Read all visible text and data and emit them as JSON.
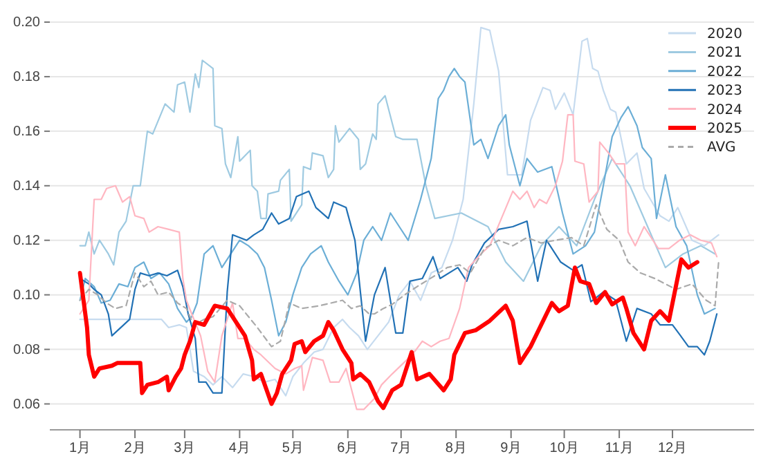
{
  "chart_data": {
    "type": "line",
    "xlim": [
      "2000-12-15",
      "2002-01-16"
    ],
    "ylim": [
      0.0505,
      0.2
    ],
    "xticks": [
      {
        "value": "--01-01",
        "label": "1月"
      },
      {
        "value": "--02-01",
        "label": "2月"
      },
      {
        "value": "--03-01",
        "label": "3月"
      },
      {
        "value": "--04-01",
        "label": "4月"
      },
      {
        "value": "--05-01",
        "label": "5月"
      },
      {
        "value": "--06-01",
        "label": "6月"
      },
      {
        "value": "--07-01",
        "label": "7月"
      },
      {
        "value": "--08-01",
        "label": "8月"
      },
      {
        "value": "--09-01",
        "label": "9月"
      },
      {
        "value": "--10-01",
        "label": "10月"
      },
      {
        "value": "--11-01",
        "label": "11月"
      },
      {
        "value": "--12-01",
        "label": "12月"
      }
    ],
    "yticks": [
      {
        "value": 0.06,
        "label": "0.06"
      },
      {
        "value": 0.08,
        "label": "0.08"
      },
      {
        "value": 0.1,
        "label": "0.10"
      },
      {
        "value": 0.12,
        "label": "0.12"
      },
      {
        "value": 0.14,
        "label": "0.14"
      },
      {
        "value": 0.16,
        "label": "0.16"
      },
      {
        "value": 0.18,
        "label": "0.18"
      },
      {
        "value": 0.2,
        "label": "0.20"
      }
    ],
    "grid": "y",
    "legend": "top right",
    "marker": "none",
    "series": [
      {
        "name": "2020",
        "color": "#c6dbef",
        "line_style": "solid",
        "x": [
          "--01-01",
          "--01-11",
          "--01-21",
          "--01-31",
          "--02-10",
          "--02-16",
          "--02-20",
          "--02-26",
          "--03-02",
          "--03-06",
          "--03-12",
          "--03-17",
          "--03-22",
          "--03-28",
          "--04-03",
          "--04-09",
          "--04-15",
          "--04-21",
          "--04-27",
          "--05-01",
          "--05-07",
          "--05-13",
          "--05-18",
          "--05-24",
          "--05-29",
          "--06-02",
          "--06-07",
          "--06-12",
          "--06-18",
          "--06-24",
          "--06-30",
          "--07-06",
          "--07-12",
          "--07-18",
          "--07-24",
          "--07-30",
          "--08-05",
          "--08-11",
          "--08-15",
          "--08-20",
          "--08-25",
          "--08-30",
          "--09-07",
          "--09-12",
          "--09-19",
          "--09-23",
          "--09-26",
          "--10-01",
          "--10-06",
          "--10-11",
          "--10-14",
          "--10-17",
          "--10-20",
          "--10-23",
          "--10-27",
          "--10-30",
          "--11-05",
          "--11-11",
          "--11-15",
          "--11-24",
          "--11-29",
          "--12-04",
          "--12-12",
          "--12-19",
          "--12-27"
        ],
        "values": [
          0.091,
          0.091,
          0.091,
          0.091,
          0.091,
          0.091,
          0.088,
          0.089,
          0.088,
          0.072,
          0.07,
          0.067,
          0.07,
          0.066,
          0.071,
          0.07,
          0.068,
          0.069,
          0.063,
          0.07,
          0.075,
          0.079,
          0.08,
          0.088,
          0.091,
          0.088,
          0.085,
          0.08,
          0.085,
          0.09,
          0.1,
          0.105,
          0.098,
          0.108,
          0.11,
          0.12,
          0.135,
          0.17,
          0.198,
          0.197,
          0.182,
          0.144,
          0.144,
          0.164,
          0.176,
          0.175,
          0.168,
          0.174,
          0.166,
          0.193,
          0.194,
          0.183,
          0.182,
          0.175,
          0.168,
          0.167,
          0.148,
          0.152,
          0.139,
          0.129,
          0.127,
          0.132,
          0.12,
          0.118,
          0.122
        ]
      },
      {
        "name": "2021",
        "color": "#9ecae1",
        "line_style": "solid",
        "x": [
          "--01-01",
          "--01-04",
          "--01-06",
          "--01-09",
          "--01-12",
          "--01-17",
          "--01-20",
          "--01-23",
          "--01-27",
          "--01-31",
          "--02-04",
          "--02-08",
          "--02-11",
          "--02-18",
          "--02-23",
          "--02-25",
          "--03-01",
          "--03-04",
          "--03-07",
          "--03-09",
          "--03-11",
          "--03-17",
          "--03-18",
          "--03-22",
          "--03-24",
          "--03-27",
          "--03-31",
          "--04-01",
          "--04-07",
          "--04-08",
          "--04-11",
          "--04-13",
          "--04-16",
          "--04-17",
          "--04-23",
          "--04-24",
          "--04-29",
          "--04-30",
          "--05-06",
          "--05-07",
          "--05-11",
          "--05-12",
          "--05-18",
          "--05-21",
          "--05-24",
          "--05-25",
          "--05-27",
          "--06-02",
          "--06-07",
          "--06-08",
          "--06-11",
          "--06-15",
          "--06-17",
          "--06-18",
          "--06-22",
          "--06-26",
          "--06-28",
          "--07-02",
          "--07-10",
          "--07-15",
          "--07-20",
          "--08-04",
          "--08-19",
          "--08-29",
          "--09-08",
          "--09-18",
          "--09-28",
          "--10-08",
          "--10-18",
          "--10-28",
          "--11-07",
          "--11-17",
          "--11-27",
          "--12-07",
          "--12-17",
          "--12-25"
        ],
        "values": [
          0.118,
          0.118,
          0.123,
          0.115,
          0.12,
          0.115,
          0.111,
          0.123,
          0.127,
          0.14,
          0.14,
          0.16,
          0.159,
          0.17,
          0.167,
          0.177,
          0.178,
          0.167,
          0.181,
          0.176,
          0.186,
          0.183,
          0.162,
          0.161,
          0.148,
          0.143,
          0.158,
          0.149,
          0.153,
          0.14,
          0.138,
          0.128,
          0.128,
          0.137,
          0.138,
          0.142,
          0.146,
          0.127,
          0.133,
          0.147,
          0.146,
          0.152,
          0.151,
          0.143,
          0.146,
          0.162,
          0.156,
          0.161,
          0.157,
          0.146,
          0.148,
          0.159,
          0.157,
          0.17,
          0.173,
          0.163,
          0.158,
          0.157,
          0.157,
          0.14,
          0.128,
          0.13,
          0.125,
          0.112,
          0.105,
          0.118,
          0.125,
          0.118,
          0.135,
          0.15,
          0.14,
          0.125,
          0.11,
          0.115,
          0.118,
          0.115
        ]
      },
      {
        "name": "2022",
        "color": "#6baed6",
        "line_style": "solid",
        "x": [
          "--01-01",
          "--01-04",
          "--01-09",
          "--01-13",
          "--01-18",
          "--01-23",
          "--01-28",
          "--02-01",
          "--02-06",
          "--02-10",
          "--02-15",
          "--02-20",
          "--02-25",
          "--03-02",
          "--03-05",
          "--03-08",
          "--03-12",
          "--03-17",
          "--03-22",
          "--03-27",
          "--04-01",
          "--04-06",
          "--04-11",
          "--04-15",
          "--04-19",
          "--04-23",
          "--04-27",
          "--05-01",
          "--05-06",
          "--05-11",
          "--05-17",
          "--05-21",
          "--05-27",
          "--06-01",
          "--06-06",
          "--06-10",
          "--06-15",
          "--06-20",
          "--06-25",
          "--06-30",
          "--07-05",
          "--07-12",
          "--07-18",
          "--07-22",
          "--07-25",
          "--07-28",
          "--07-31",
          "--08-03",
          "--08-06",
          "--08-11",
          "--08-15",
          "--08-19",
          "--08-25",
          "--08-29",
          "--08-31",
          "--09-06",
          "--09-10",
          "--09-16",
          "--09-24",
          "--09-30",
          "--10-06",
          "--10-13",
          "--10-18",
          "--10-23",
          "--10-28",
          "--11-02",
          "--11-06",
          "--11-11",
          "--11-14",
          "--11-19",
          "--11-22",
          "--11-27",
          "--12-03",
          "--12-09",
          "--12-15",
          "--12-19",
          "--12-25"
        ],
        "values": [
          0.098,
          0.106,
          0.103,
          0.097,
          0.098,
          0.104,
          0.103,
          0.11,
          0.112,
          0.106,
          0.108,
          0.104,
          0.095,
          0.09,
          0.092,
          0.097,
          0.115,
          0.118,
          0.11,
          0.115,
          0.12,
          0.118,
          0.115,
          0.11,
          0.098,
          0.085,
          0.09,
          0.1,
          0.11,
          0.115,
          0.118,
          0.112,
          0.105,
          0.1,
          0.108,
          0.12,
          0.125,
          0.12,
          0.13,
          0.125,
          0.12,
          0.135,
          0.15,
          0.172,
          0.175,
          0.18,
          0.183,
          0.18,
          0.178,
          0.155,
          0.157,
          0.15,
          0.162,
          0.166,
          0.155,
          0.14,
          0.15,
          0.145,
          0.147,
          0.13,
          0.115,
          0.118,
          0.123,
          0.14,
          0.158,
          0.165,
          0.169,
          0.162,
          0.154,
          0.15,
          0.128,
          0.144,
          0.125,
          0.118,
          0.1,
          0.093,
          0.095
        ]
      },
      {
        "name": "2023",
        "color": "#2171b5",
        "line_style": "solid",
        "x": [
          "--01-01",
          "--01-06",
          "--01-09",
          "--01-13",
          "--01-17",
          "--01-19",
          "--01-29",
          "--02-01",
          "--02-04",
          "--02-09",
          "--02-14",
          "--02-19",
          "--02-25",
          "--02-28",
          "--03-03",
          "--03-07",
          "--03-09",
          "--03-13",
          "--03-17",
          "--03-22",
          "--03-25",
          "--03-28",
          "--04-05",
          "--04-09",
          "--04-14",
          "--04-19",
          "--04-23",
          "--04-29",
          "--05-03",
          "--05-10",
          "--05-14",
          "--05-21",
          "--05-24",
          "--05-31",
          "--06-05",
          "--06-11",
          "--06-16",
          "--06-22",
          "--06-28",
          "--07-02",
          "--07-06",
          "--07-13",
          "--07-19",
          "--07-23",
          "--08-02",
          "--08-07",
          "--08-10",
          "--08-17",
          "--08-25",
          "--09-02",
          "--09-10",
          "--09-16",
          "--09-21",
          "--09-29",
          "--10-06",
          "--10-11",
          "--10-16",
          "--10-23",
          "--10-30",
          "--11-05",
          "--11-11",
          "--11-19",
          "--11-24",
          "--12-01",
          "--12-05",
          "--12-10",
          "--12-15",
          "--12-19",
          "--12-22",
          "--12-26"
        ],
        "values": [
          0.106,
          0.104,
          0.102,
          0.1,
          0.093,
          0.085,
          0.091,
          0.102,
          0.108,
          0.107,
          0.108,
          0.107,
          0.109,
          0.103,
          0.093,
          0.084,
          0.068,
          0.068,
          0.064,
          0.064,
          0.101,
          0.122,
          0.12,
          0.122,
          0.124,
          0.13,
          0.126,
          0.128,
          0.136,
          0.138,
          0.132,
          0.128,
          0.134,
          0.132,
          0.12,
          0.083,
          0.1,
          0.11,
          0.086,
          0.086,
          0.105,
          0.106,
          0.114,
          0.106,
          0.11,
          0.105,
          0.111,
          0.119,
          0.124,
          0.125,
          0.127,
          0.105,
          0.12,
          0.112,
          0.109,
          0.111,
          0.0975,
          0.101,
          0.098,
          0.083,
          0.095,
          0.093,
          0.089,
          0.089,
          0.0855,
          0.081,
          0.081,
          0.078,
          0.083,
          0.093
        ]
      },
      {
        "name": "2024",
        "color": "#ffb6c1",
        "line_style": "solid",
        "x": [
          "--01-01",
          "--01-06",
          "--01-09",
          "--01-13",
          "--01-16",
          "--01-21",
          "--01-25",
          "--01-29",
          "--02-01",
          "--02-06",
          "--02-09",
          "--02-14",
          "--02-20",
          "--02-26",
          "--02-28",
          "--03-02",
          "--03-05",
          "--03-10",
          "--03-14",
          "--03-18",
          "--03-22",
          "--03-28",
          "--03-31",
          "--04-04",
          "--04-09",
          "--04-13",
          "--04-21",
          "--04-27",
          "--05-02",
          "--05-06",
          "--05-07",
          "--05-12",
          "--05-18",
          "--05-22",
          "--05-27",
          "--05-31",
          "--06-06",
          "--06-10",
          "--06-16",
          "--06-20",
          "--06-26",
          "--07-04",
          "--07-09",
          "--07-13",
          "--07-18",
          "--07-23",
          "--07-28",
          "--08-03",
          "--08-08",
          "--08-15",
          "--08-20",
          "--08-24",
          "--09-02",
          "--09-06",
          "--09-10",
          "--09-14",
          "--09-17",
          "--09-21",
          "--09-26",
          "--09-30",
          "--10-03",
          "--10-06",
          "--10-07",
          "--10-12",
          "--10-15",
          "--10-20",
          "--10-21",
          "--10-26",
          "--10-30",
          "--11-04",
          "--11-06",
          "--11-10",
          "--11-15",
          "--11-23",
          "--11-29",
          "--12-05",
          "--12-11",
          "--12-17",
          "--12-23",
          "--12-26"
        ],
        "values": [
          0.093,
          0.098,
          0.135,
          0.135,
          0.139,
          0.14,
          0.134,
          0.136,
          0.129,
          0.128,
          0.123,
          0.125,
          0.124,
          0.123,
          0.106,
          0.098,
          0.093,
          0.085,
          0.072,
          0.068,
          0.085,
          0.097,
          0.084,
          0.084,
          0.08,
          0.078,
          0.073,
          0.071,
          0.073,
          0.074,
          0.065,
          0.077,
          0.076,
          0.068,
          0.068,
          0.073,
          0.058,
          0.058,
          0.062,
          0.067,
          0.071,
          0.076,
          0.0795,
          0.083,
          0.081,
          0.083,
          0.084,
          0.095,
          0.11,
          0.115,
          0.118,
          0.124,
          0.138,
          0.135,
          0.138,
          0.132,
          0.135,
          0.1335,
          0.14,
          0.149,
          0.166,
          0.166,
          0.149,
          0.148,
          0.134,
          0.138,
          0.156,
          0.152,
          0.148,
          0.148,
          0.123,
          0.118,
          0.125,
          0.117,
          0.117,
          0.12,
          0.122,
          0.12,
          0.119,
          0.114
        ]
      },
      {
        "name": "2025",
        "color": "#ff0000",
        "line_style": "solid",
        "x": [
          "--01-01",
          "--01-05",
          "--01-06",
          "--01-09",
          "--01-12",
          "--01-19",
          "--01-22",
          "--02-04",
          "--02-05",
          "--02-08",
          "--02-14",
          "--02-19",
          "--02-20",
          "--02-24",
          "--02-27",
          "--03-01",
          "--03-04",
          "--03-07",
          "--03-12",
          "--03-18",
          "--03-25",
          "--03-30",
          "--04-04",
          "--04-08",
          "--04-09",
          "--04-13",
          "--04-19",
          "--04-22",
          "--04-25",
          "--04-30",
          "--05-02",
          "--05-06",
          "--05-08",
          "--05-13",
          "--05-18",
          "--05-21",
          "--05-24",
          "--05-29",
          "--06-03",
          "--06-04",
          "--06-08",
          "--06-13",
          "--06-18",
          "--06-21",
          "--06-26",
          "--07-01",
          "--07-07",
          "--07-10",
          "--07-17",
          "--07-25",
          "--07-29",
          "--07-31",
          "--08-06",
          "--08-12",
          "--08-20",
          "--08-29",
          "--09-02",
          "--09-06",
          "--09-12",
          "--09-18",
          "--09-24",
          "--09-28",
          "--10-03",
          "--10-07",
          "--10-10",
          "--10-15",
          "--10-19",
          "--10-24",
          "--10-28",
          "--11-03",
          "--11-05",
          "--11-09",
          "--11-15",
          "--11-19",
          "--11-24",
          "--11-29",
          "--12-06",
          "--12-10",
          "--12-15"
        ],
        "values": [
          0.108,
          0.088,
          0.078,
          0.07,
          0.073,
          0.074,
          0.075,
          0.075,
          0.064,
          0.067,
          0.068,
          0.07,
          0.065,
          0.07,
          0.073,
          0.078,
          0.083,
          0.09,
          0.089,
          0.096,
          0.095,
          0.09,
          0.085,
          0.076,
          0.069,
          0.071,
          0.06,
          0.064,
          0.071,
          0.076,
          0.082,
          0.083,
          0.079,
          0.083,
          0.085,
          0.09,
          0.087,
          0.08,
          0.075,
          0.069,
          0.071,
          0.068,
          0.061,
          0.0585,
          0.065,
          0.067,
          0.079,
          0.069,
          0.071,
          0.065,
          0.069,
          0.078,
          0.086,
          0.087,
          0.0905,
          0.096,
          0.0905,
          0.075,
          0.081,
          0.089,
          0.097,
          0.094,
          0.096,
          0.11,
          0.105,
          0.104,
          0.097,
          0.101,
          0.0965,
          0.099,
          0.095,
          0.086,
          0.08,
          0.0905,
          0.094,
          0.0905,
          0.113,
          0.11,
          0.112
        ]
      },
      {
        "name": "AVG",
        "color": "#aaaaaa",
        "line_style": "dashed",
        "x": [
          "--01-01",
          "--01-06",
          "--01-11",
          "--01-16",
          "--01-21",
          "--01-27",
          "--02-01",
          "--02-06",
          "--02-10",
          "--02-14",
          "--02-20",
          "--02-25",
          "--03-02",
          "--03-06",
          "--03-12",
          "--03-17",
          "--03-25",
          "--04-01",
          "--04-11",
          "--04-19",
          "--04-24",
          "--04-29",
          "--05-06",
          "--05-16",
          "--05-29",
          "--06-03",
          "--06-08",
          "--06-13",
          "--06-16",
          "--06-21",
          "--06-26",
          "--07-03",
          "--07-10",
          "--07-20",
          "--07-27",
          "--08-03",
          "--08-09",
          "--08-17",
          "--08-25",
          "--09-02",
          "--09-10",
          "--09-18",
          "--09-26",
          "--10-05",
          "--10-12",
          "--10-19",
          "--10-25",
          "--11-01",
          "--11-06",
          "--11-13",
          "--11-21",
          "--12-03",
          "--12-12",
          "--12-20",
          "--12-25",
          "--12-27"
        ],
        "values": [
          0.098,
          0.102,
          0.1,
          0.097,
          0.095,
          0.096,
          0.108,
          0.103,
          0.105,
          0.1,
          0.101,
          0.097,
          0.095,
          0.089,
          0.091,
          0.092,
          0.098,
          0.096,
          0.088,
          0.081,
          0.083,
          0.097,
          0.095,
          0.096,
          0.098,
          0.095,
          0.096,
          0.093,
          0.093,
          0.095,
          0.0965,
          0.1,
          0.103,
          0.107,
          0.11,
          0.111,
          0.108,
          0.117,
          0.12,
          0.118,
          0.121,
          0.119,
          0.12,
          0.121,
          0.118,
          0.133,
          0.124,
          0.12,
          0.112,
          0.108,
          0.106,
          0.102,
          0.104,
          0.098,
          0.096,
          0.112
        ]
      }
    ]
  }
}
